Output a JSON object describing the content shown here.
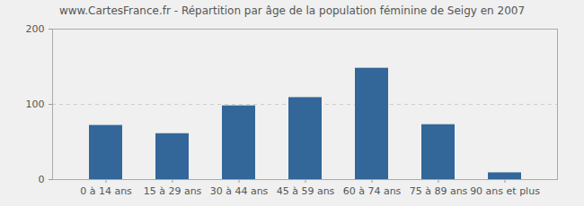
{
  "chart_data": {
    "type": "bar",
    "title": "www.CartesFrance.fr - Répartition par âge de la population féminine de Seigy en 2007",
    "categories": [
      "0 à 14 ans",
      "15 à 29 ans",
      "30 à 44 ans",
      "45 à 59 ans",
      "60 à 74 ans",
      "75 à 89 ans",
      "90 ans et plus"
    ],
    "values": [
      72,
      61,
      98,
      109,
      148,
      73,
      9
    ],
    "color": "#336699",
    "ylim": [
      0,
      200
    ],
    "yticks": [
      0,
      100,
      200
    ],
    "grid": true
  }
}
